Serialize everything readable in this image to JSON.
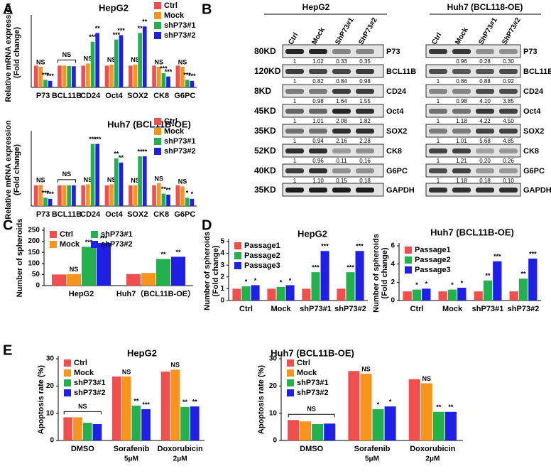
{
  "panel_labels": [
    "A",
    "B",
    "C",
    "D",
    "E"
  ],
  "chart_data": [
    {
      "type": "bar",
      "title": "HepG2",
      "y_label": [
        "Relative mRNA expression",
        "(Fold change)"
      ],
      "categories": [
        "P73",
        "BCL11B",
        "CD24",
        "Oct4",
        "SOX2",
        "CK8",
        "G6PC"
      ],
      "category_sublabels": [
        null,
        null,
        null,
        null,
        null,
        null,
        null
      ],
      "series": [
        {
          "name": "Ctrl",
          "color": "#f14e4e",
          "values": [
            1,
            1,
            1,
            1,
            1,
            1,
            1
          ],
          "significance": [
            null,
            null,
            null,
            null,
            null,
            null,
            null
          ]
        },
        {
          "name": "Mock",
          "color": "#f7941d",
          "values": [
            0.95,
            1,
            1.1,
            1.05,
            1.05,
            0.95,
            0.95
          ],
          "significance": [
            "NS",
            null,
            "NS",
            "NS",
            "NS",
            "NS",
            "NS"
          ]
        },
        {
          "name": "shP73#1",
          "color": "#22b14c",
          "values": [
            0.35,
            0.98,
            2.1,
            2.2,
            2.5,
            0.65,
            0.35
          ],
          "significance": [
            "***",
            null,
            "***",
            "***",
            "**",
            "***",
            "***"
          ]
        },
        {
          "name": "shP73#2",
          "color": "#1f1fe6",
          "values": [
            0.3,
            0.97,
            2.5,
            2.4,
            2.8,
            0.5,
            0.3
          ],
          "significance": [
            "***",
            null,
            "**",
            "***",
            "**",
            "***",
            "***"
          ]
        }
      ],
      "group_annotations": [
        null,
        "NS",
        null,
        null,
        null,
        null,
        null
      ],
      "ylim": [
        0,
        3.2
      ],
      "yticks": [],
      "legend": "top-right",
      "legend_columns": 1
    },
    {
      "type": "bar",
      "title": "Huh7 (BCL11B-OE)",
      "y_label": [
        "Relative mRNA expression",
        "(Fold change)"
      ],
      "categories": [
        "P73",
        "BCL11B",
        "CD24",
        "Oct4",
        "SOX2",
        "CK8",
        "G6PC"
      ],
      "category_sublabels": [
        null,
        null,
        null,
        null,
        null,
        null,
        null
      ],
      "series": [
        {
          "name": "Ctrl",
          "color": "#f14e4e",
          "values": [
            1,
            1,
            1,
            1,
            1,
            1,
            1
          ],
          "significance": [
            null,
            null,
            null,
            null,
            null,
            null,
            null
          ]
        },
        {
          "name": "Mock",
          "color": "#f7941d",
          "values": [
            1.02,
            1,
            1.05,
            1.05,
            1,
            1.1,
            0.95
          ],
          "significance": [
            "NS",
            null,
            "NS",
            "NS",
            "NS",
            "NS",
            "NS"
          ]
        },
        {
          "name": "shP73#1",
          "color": "#22b14c",
          "values": [
            0.4,
            1,
            3,
            2.3,
            2.4,
            0.6,
            0.4
          ],
          "significance": [
            "***",
            null,
            "***",
            "**",
            "**",
            "**",
            "*"
          ]
        },
        {
          "name": "shP73#2",
          "color": "#1f1fe6",
          "values": [
            0.35,
            1,
            3,
            2.1,
            2.4,
            0.55,
            0.35
          ],
          "significance": [
            "***",
            null,
            "***",
            "**",
            "**",
            "**",
            "*"
          ]
        }
      ],
      "group_annotations": [
        null,
        "NS",
        null,
        null,
        null,
        null,
        null
      ],
      "ylim": [
        0,
        3.5
      ],
      "yticks": [],
      "legend": "top-right",
      "legend_columns": 1
    },
    {
      "type": "bar",
      "title": null,
      "y_label": [
        "Number of spheroids"
      ],
      "categories": [
        "HepG2",
        "Huh7（BCL11B-OE）"
      ],
      "category_sublabels": [
        null,
        null
      ],
      "series": [
        {
          "name": "Ctrl",
          "color": "#f14e4e",
          "values": [
            50,
            52
          ],
          "significance": [
            null,
            null
          ]
        },
        {
          "name": "Mock",
          "color": "#f7941d",
          "values": [
            52,
            57
          ],
          "significance": [
            "NS",
            null
          ]
        },
        {
          "name": "shP73#1",
          "color": "#22b14c",
          "values": [
            175,
            120
          ],
          "significance": [
            "***",
            "**"
          ]
        },
        {
          "name": "shP73#2",
          "color": "#1f1fe6",
          "values": [
            192,
            130
          ],
          "significance": [
            "***",
            "**"
          ]
        }
      ],
      "group_annotations": [
        null,
        null
      ],
      "ylim": [
        0,
        250
      ],
      "yticks": [
        0,
        50,
        100,
        150,
        200,
        250
      ],
      "legend": "top-left",
      "legend_columns": 2
    },
    {
      "type": "bar",
      "title": "HepG2",
      "y_label": [
        "Number of spheroids",
        "(Fold change)"
      ],
      "categories": [
        "Ctrl",
        "Mock",
        "shP73#1",
        "shP73#2"
      ],
      "category_sublabels": [
        null,
        null,
        null,
        null
      ],
      "series": [
        {
          "name": "Passage1",
          "color": "#f14e4e",
          "values": [
            1,
            1,
            1,
            1
          ],
          "significance": [
            null,
            null,
            null,
            null
          ]
        },
        {
          "name": "Passage2",
          "color": "#22b14c",
          "values": [
            1.2,
            1.15,
            2.4,
            2.4
          ],
          "significance": [
            "*",
            "*",
            "***",
            "***"
          ]
        },
        {
          "name": "Passage3",
          "color": "#1f1fe6",
          "values": [
            1.3,
            1.3,
            4.2,
            4.2
          ],
          "significance": [
            "*",
            "*",
            "***",
            "***"
          ]
        }
      ],
      "group_annotations": [
        null,
        null,
        null,
        null
      ],
      "ylim": [
        0,
        5
      ],
      "yticks": [
        0,
        1,
        2,
        3,
        4,
        5
      ],
      "legend": "top-left",
      "legend_columns": 1
    },
    {
      "type": "bar",
      "title": "Huh7 (BCL11B-OE)",
      "y_label": [
        "Number of spheroids",
        "(Fold change)"
      ],
      "categories": [
        "Ctrl",
        "Mock",
        "shP73#1",
        "shP73#2"
      ],
      "category_sublabels": [
        null,
        null,
        null,
        null
      ],
      "series": [
        {
          "name": "Passage1",
          "color": "#f14e4e",
          "values": [
            1,
            1,
            1,
            1
          ],
          "significance": [
            null,
            null,
            null,
            null
          ]
        },
        {
          "name": "Passage2",
          "color": "#22b14c",
          "values": [
            1.2,
            1.2,
            2.2,
            2.4
          ],
          "significance": [
            "*",
            "*",
            "**",
            "**"
          ]
        },
        {
          "name": "Passage3",
          "color": "#1f1fe6",
          "values": [
            1.3,
            1.4,
            4.3,
            4.6
          ],
          "significance": [
            "*",
            "*",
            "***",
            "***"
          ]
        }
      ],
      "group_annotations": [
        null,
        null,
        null,
        null
      ],
      "ylim": [
        0,
        6
      ],
      "yticks": [
        0,
        2,
        4,
        6
      ],
      "legend": "top-left",
      "legend_columns": 1
    },
    {
      "type": "bar",
      "title": "HepG2",
      "y_label": [
        "Apoptosis rate (%)"
      ],
      "categories": [
        "DMSO",
        "Sorafenib",
        "Doxorubicin"
      ],
      "category_sublabels": [
        null,
        "5μM",
        "2μM"
      ],
      "series": [
        {
          "name": "Ctrl",
          "color": "#f14e4e",
          "values": [
            8.5,
            23.5,
            25.3
          ],
          "significance": [
            null,
            null,
            null
          ]
        },
        {
          "name": "Mock",
          "color": "#f7941d",
          "values": [
            8.5,
            23.5,
            26
          ],
          "significance": [
            null,
            "NS",
            "NS"
          ]
        },
        {
          "name": "shP73#1",
          "color": "#22b14c",
          "values": [
            6.5,
            12.8,
            12.3
          ],
          "significance": [
            null,
            "**",
            "**"
          ]
        },
        {
          "name": "shP73#2",
          "color": "#1f1fe6",
          "values": [
            6,
            11.5,
            12.5
          ],
          "significance": [
            null,
            "***",
            "**"
          ]
        }
      ],
      "group_annotations": [
        "NS",
        null,
        null
      ],
      "ylim": [
        0,
        30
      ],
      "yticks": [
        0,
        10,
        20,
        30
      ],
      "legend": "top-left",
      "legend_columns": 1
    },
    {
      "type": "bar",
      "title": "Huh7 (BCL11B-OE)",
      "y_label": [
        "Apoptosis rate (%)"
      ],
      "categories": [
        "DMSO",
        "Sorafenib",
        "Doxorubicin"
      ],
      "category_sublabels": [
        null,
        "5μM",
        "2μM"
      ],
      "series": [
        {
          "name": "Ctrl",
          "color": "#f14e4e",
          "values": [
            7.5,
            25.5,
            22.5
          ],
          "significance": [
            null,
            null,
            null
          ]
        },
        {
          "name": "Mock",
          "color": "#f7941d",
          "values": [
            7,
            24.5,
            21
          ],
          "significance": [
            null,
            "NS",
            "NS"
          ]
        },
        {
          "name": "shP73#1",
          "color": "#22b14c",
          "values": [
            6,
            11.5,
            10.5
          ],
          "significance": [
            null,
            "*",
            "**"
          ]
        },
        {
          "name": "shP73#2",
          "color": "#1f1fe6",
          "values": [
            6.2,
            12.5,
            10.5
          ],
          "significance": [
            null,
            "*",
            "**"
          ]
        }
      ],
      "group_annotations": [
        "NS",
        null,
        null
      ],
      "ylim": [
        0,
        30
      ],
      "yticks": [
        0,
        10,
        20,
        30
      ],
      "legend": "top-left",
      "legend_columns": 1
    }
  ],
  "blot": {
    "mw": [
      "80KD",
      "120KD",
      "8KD",
      "45KD",
      "35KD",
      "52KD",
      "40KD",
      "35KD"
    ],
    "proteins": [
      "P73",
      "BCL11B",
      "CD24",
      "Oct4",
      "SOX2",
      "CK8",
      "G6PC",
      "GAPDH"
    ],
    "panels": [
      {
        "title": "HepG2",
        "lanes": [
          "Ctrl",
          "Mock",
          "ShP73#1",
          "ShP73#2"
        ],
        "quant": [
          [
            "1",
            "1.02",
            "0.33",
            "0.35"
          ],
          [
            "1",
            "0.82",
            "0.84",
            "0.98"
          ],
          [
            "1",
            "0.98",
            "1.64",
            "1.55"
          ],
          [
            "1",
            "1.01",
            "2.08",
            "1.82"
          ],
          [
            "1",
            "0.94",
            "2.16",
            "2.28"
          ],
          [
            "1",
            "0.96",
            "0.11",
            "0.16"
          ],
          [
            "1",
            "1.10",
            "0.15",
            "0.18"
          ]
        ]
      },
      {
        "title": "Huh7 (BCL118-OE)",
        "lanes": [
          "Ctrl",
          "Mock",
          "ShP73#1",
          "ShP73#2"
        ],
        "quant": [
          [
            null,
            "0.96",
            "0.28",
            "0.30"
          ],
          [
            "1",
            "0.86",
            "0.88",
            "0.92"
          ],
          [
            "1",
            "0.98",
            "4.10",
            "3.85"
          ],
          [
            "1",
            "1.18",
            "4.22",
            "4.50"
          ],
          [
            "1",
            "1.01",
            "5.68",
            "4.85"
          ],
          [
            "1",
            "1.21",
            "0.20",
            "0.26"
          ],
          [
            "1",
            "1.18",
            "0.18",
            "0.10"
          ]
        ]
      }
    ]
  }
}
